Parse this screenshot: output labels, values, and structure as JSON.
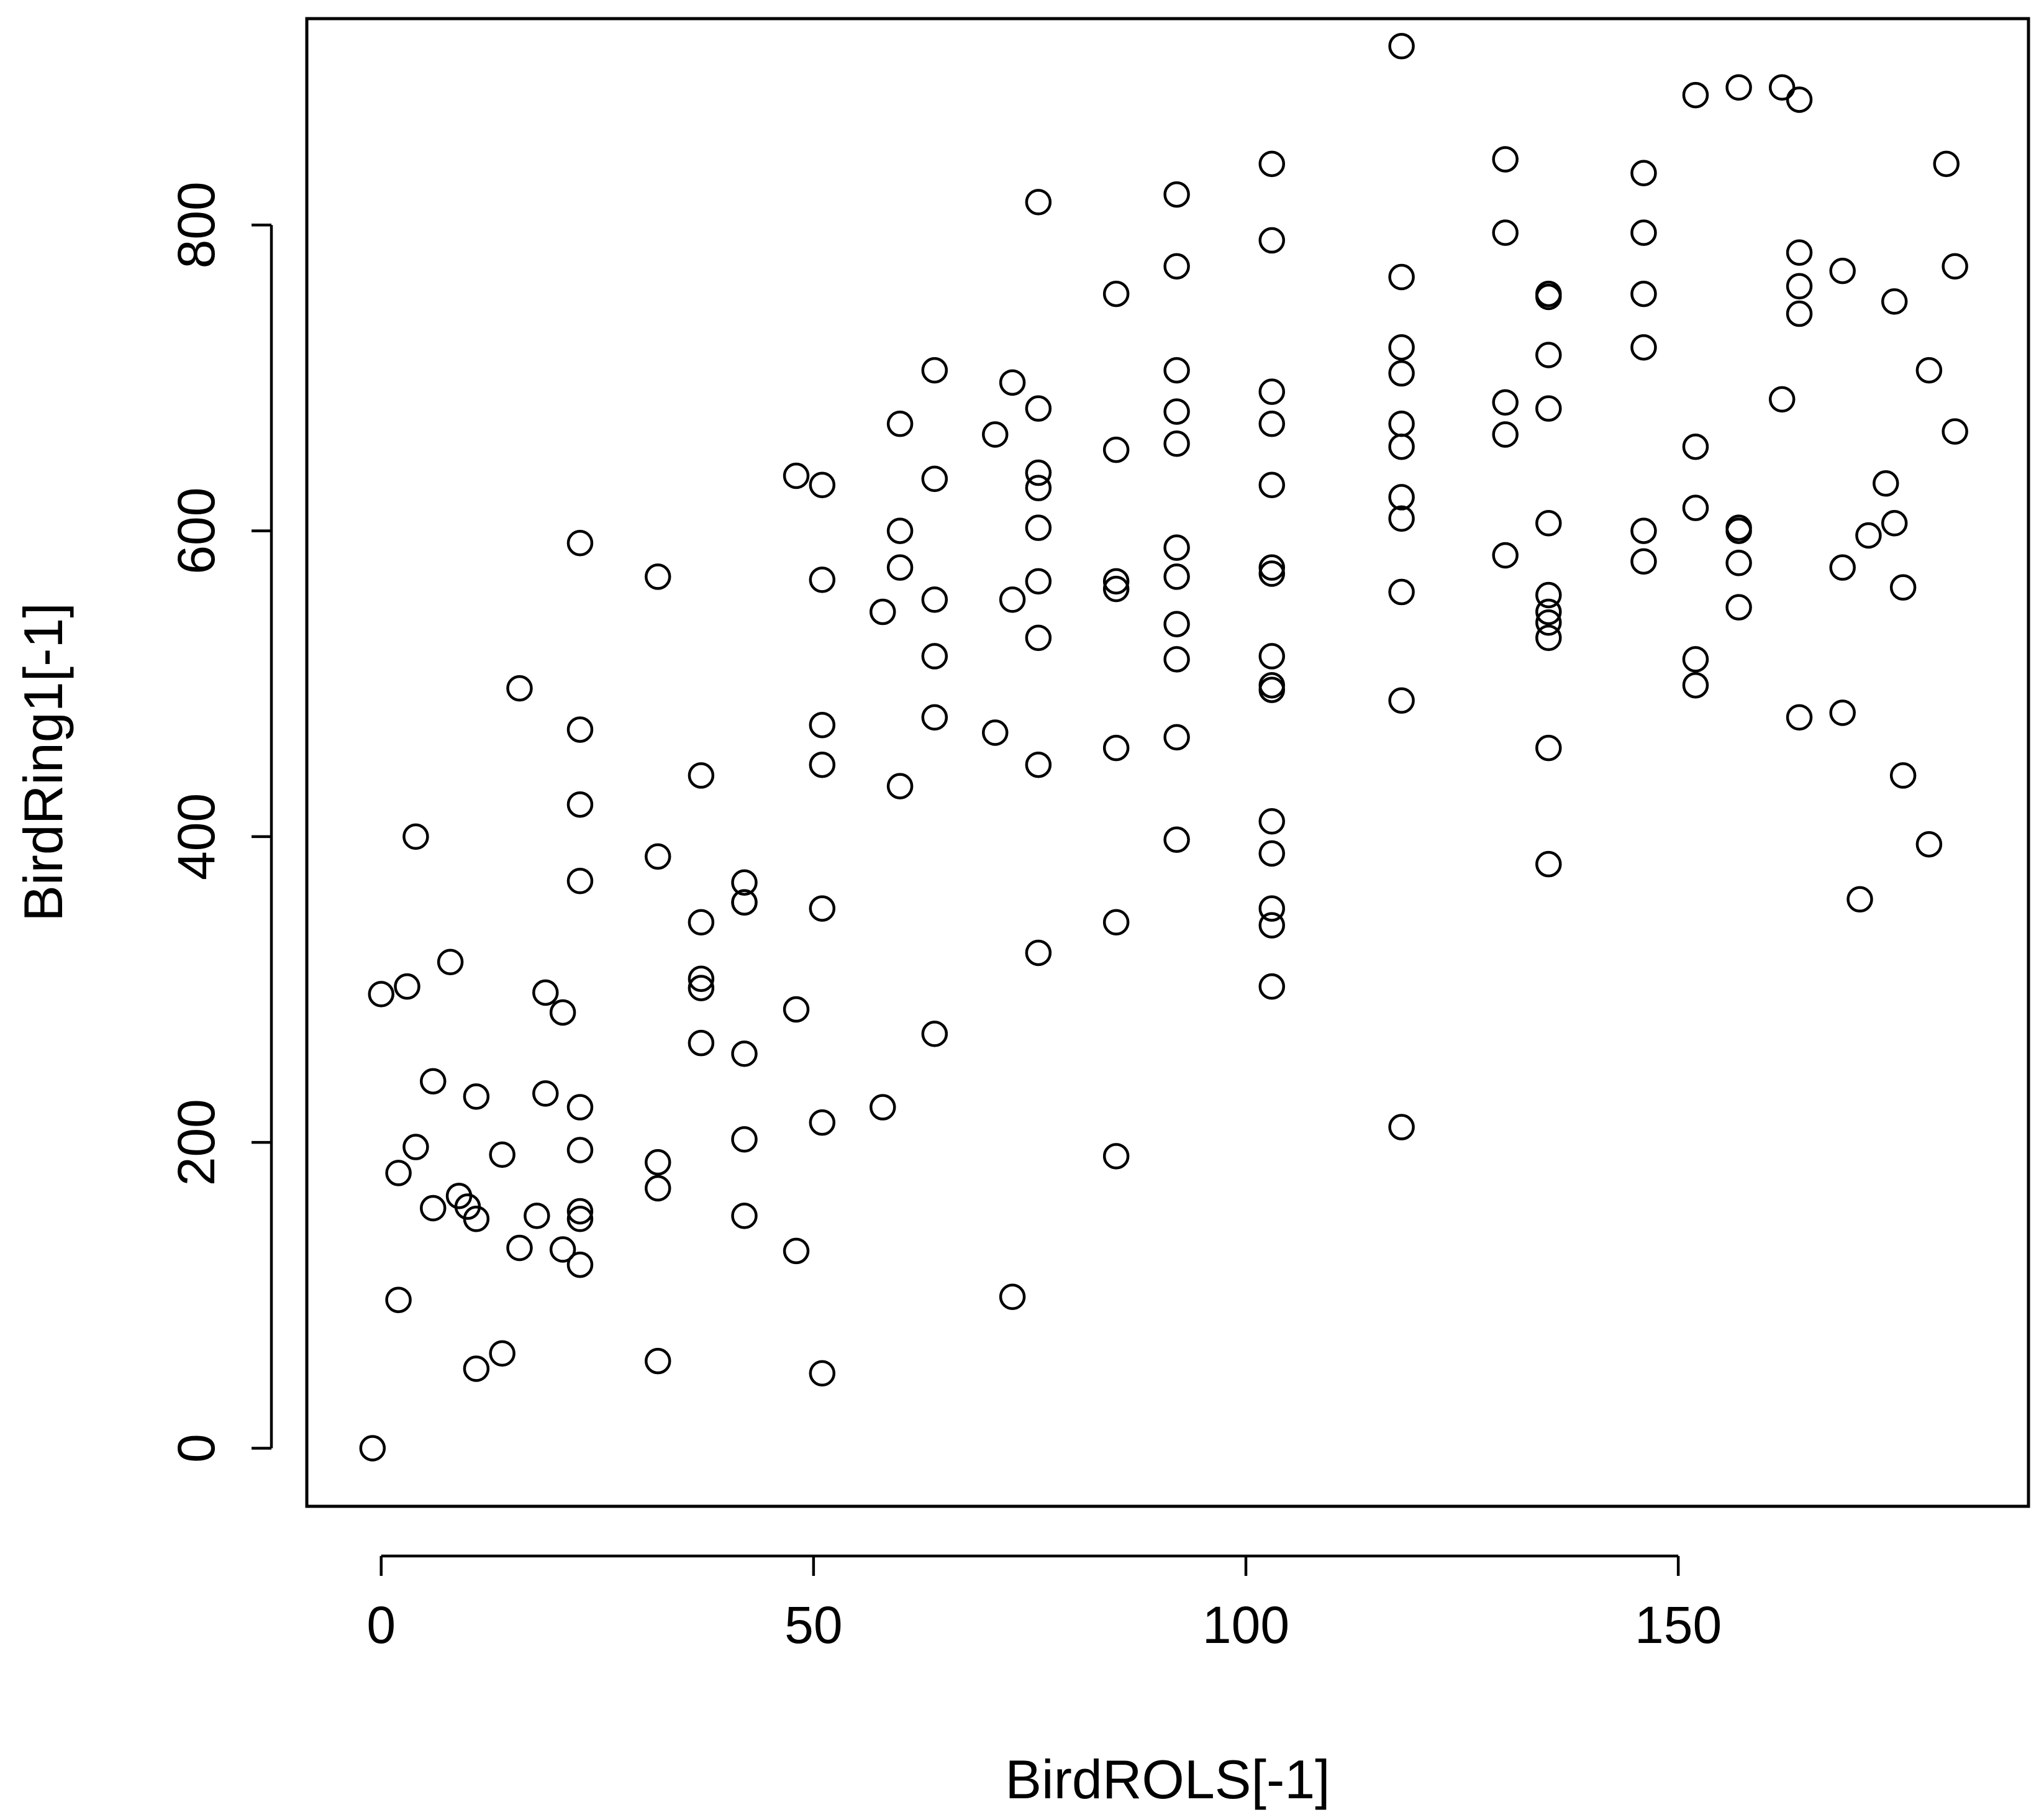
{
  "chart_data": {
    "type": "scatter",
    "title": "",
    "xlabel": "BirdROLS[-1]",
    "ylabel": "BirdRing1[-1]",
    "xlim": [
      -8.6,
      190.5
    ],
    "ylim": [
      -38,
      935
    ],
    "xticks": [
      0,
      50,
      100,
      150
    ],
    "yticks": [
      0,
      200,
      400,
      600,
      800
    ],
    "grid": false,
    "legend": "none",
    "point_style": "open circle",
    "points": [
      [
        -1,
        0
      ],
      [
        0,
        297
      ],
      [
        2,
        180
      ],
      [
        2,
        97
      ],
      [
        3,
        302
      ],
      [
        4,
        400
      ],
      [
        4,
        197
      ],
      [
        6,
        240
      ],
      [
        6,
        157
      ],
      [
        8,
        318
      ],
      [
        9,
        165
      ],
      [
        10,
        158
      ],
      [
        11,
        230
      ],
      [
        11,
        150
      ],
      [
        11,
        52
      ],
      [
        14,
        192
      ],
      [
        14,
        62
      ],
      [
        16,
        131
      ],
      [
        16,
        497
      ],
      [
        18,
        152
      ],
      [
        19,
        298
      ],
      [
        19,
        232
      ],
      [
        21,
        285
      ],
      [
        21,
        130
      ],
      [
        23,
        592
      ],
      [
        23,
        470
      ],
      [
        23,
        421
      ],
      [
        23,
        371
      ],
      [
        23,
        223
      ],
      [
        23,
        195
      ],
      [
        23,
        155
      ],
      [
        23,
        150
      ],
      [
        23,
        120
      ],
      [
        32,
        570
      ],
      [
        32,
        387
      ],
      [
        32,
        187
      ],
      [
        32,
        170
      ],
      [
        32,
        57
      ],
      [
        37,
        440
      ],
      [
        37,
        344
      ],
      [
        37,
        307
      ],
      [
        37,
        301
      ],
      [
        37,
        265
      ],
      [
        42,
        370
      ],
      [
        42,
        357
      ],
      [
        42,
        357
      ],
      [
        42,
        258
      ],
      [
        42,
        202
      ],
      [
        42,
        152
      ],
      [
        48,
        636
      ],
      [
        48,
        287
      ],
      [
        48,
        129
      ],
      [
        51,
        630
      ],
      [
        51,
        568
      ],
      [
        51,
        473
      ],
      [
        51,
        447
      ],
      [
        51,
        353
      ],
      [
        51,
        213
      ],
      [
        51,
        49
      ],
      [
        58,
        547
      ],
      [
        58,
        223
      ],
      [
        60,
        670
      ],
      [
        60,
        600
      ],
      [
        60,
        576
      ],
      [
        60,
        433
      ],
      [
        64,
        705
      ],
      [
        64,
        634
      ],
      [
        64,
        555
      ],
      [
        64,
        518
      ],
      [
        64,
        478
      ],
      [
        64,
        271
      ],
      [
        71,
        663
      ],
      [
        71,
        468
      ],
      [
        73,
        697
      ],
      [
        73,
        555
      ],
      [
        73,
        99
      ],
      [
        76,
        815
      ],
      [
        76,
        680
      ],
      [
        76,
        638
      ],
      [
        76,
        628
      ],
      [
        76,
        602
      ],
      [
        76,
        567
      ],
      [
        76,
        530
      ],
      [
        76,
        447
      ],
      [
        76,
        324
      ],
      [
        85,
        755
      ],
      [
        85,
        653
      ],
      [
        85,
        567
      ],
      [
        85,
        562
      ],
      [
        85,
        458
      ],
      [
        85,
        344
      ],
      [
        85,
        191
      ],
      [
        92,
        820
      ],
      [
        92,
        773
      ],
      [
        92,
        705
      ],
      [
        92,
        678
      ],
      [
        92,
        657
      ],
      [
        92,
        589
      ],
      [
        92,
        570
      ],
      [
        92,
        539
      ],
      [
        92,
        516
      ],
      [
        92,
        465
      ],
      [
        92,
        398
      ],
      [
        103,
        840
      ],
      [
        103,
        790
      ],
      [
        103,
        691
      ],
      [
        103,
        670
      ],
      [
        103,
        630
      ],
      [
        103,
        576
      ],
      [
        103,
        572
      ],
      [
        103,
        518
      ],
      [
        103,
        499
      ],
      [
        103,
        496
      ],
      [
        103,
        410
      ],
      [
        103,
        389
      ],
      [
        103,
        353
      ],
      [
        103,
        342
      ],
      [
        103,
        302
      ],
      [
        118,
        917
      ],
      [
        118,
        766
      ],
      [
        118,
        720
      ],
      [
        118,
        703
      ],
      [
        118,
        670
      ],
      [
        118,
        655
      ],
      [
        118,
        622
      ],
      [
        118,
        608
      ],
      [
        118,
        560
      ],
      [
        118,
        489
      ],
      [
        118,
        210
      ],
      [
        130,
        843
      ],
      [
        130,
        795
      ],
      [
        130,
        684
      ],
      [
        130,
        663
      ],
      [
        130,
        584
      ],
      [
        135,
        755
      ],
      [
        135,
        753
      ],
      [
        135,
        715
      ],
      [
        135,
        680
      ],
      [
        135,
        605
      ],
      [
        135,
        558
      ],
      [
        135,
        547
      ],
      [
        135,
        540
      ],
      [
        135,
        530
      ],
      [
        135,
        458
      ],
      [
        135,
        382
      ],
      [
        146,
        834
      ],
      [
        146,
        795
      ],
      [
        146,
        755
      ],
      [
        146,
        720
      ],
      [
        146,
        600
      ],
      [
        146,
        580
      ],
      [
        152,
        885
      ],
      [
        152,
        655
      ],
      [
        152,
        615
      ],
      [
        152,
        516
      ],
      [
        152,
        499
      ],
      [
        157,
        890
      ],
      [
        157,
        602
      ],
      [
        157,
        600
      ],
      [
        157,
        579
      ],
      [
        157,
        550
      ],
      [
        162,
        890
      ],
      [
        162,
        686
      ],
      [
        164,
        882
      ],
      [
        164,
        782
      ],
      [
        164,
        760
      ],
      [
        164,
        742
      ],
      [
        164,
        478
      ],
      [
        169,
        770
      ],
      [
        169,
        576
      ],
      [
        169,
        481
      ],
      [
        172,
        597
      ],
      [
        174,
        631
      ],
      [
        175,
        750
      ],
      [
        175,
        605
      ],
      [
        176,
        563
      ],
      [
        176,
        440
      ],
      [
        171,
        359
      ],
      [
        179,
        705
      ],
      [
        179,
        395
      ],
      [
        181,
        840
      ],
      [
        182,
        773
      ],
      [
        182,
        665
      ]
    ]
  }
}
